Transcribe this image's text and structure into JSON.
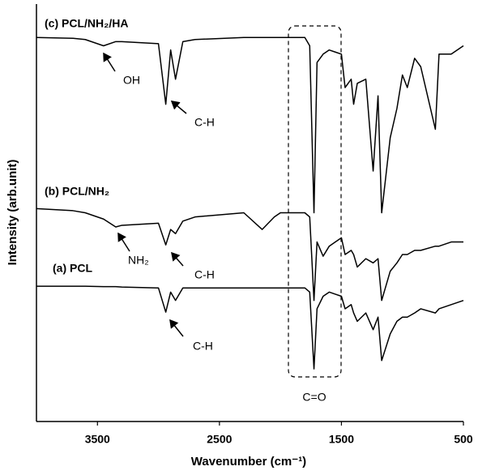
{
  "chart_data": {
    "type": "line",
    "x_label": "Wavenumber (cm⁻¹)",
    "y_label": "Intensity (arb.unit)",
    "x": [
      4000,
      3700,
      3600,
      3450,
      3350,
      3300,
      3000,
      2940,
      2900,
      2860,
      2800,
      2700,
      2300,
      2150,
      2050,
      2000,
      1800,
      1760,
      1725,
      1700,
      1650,
      1600,
      1550,
      1500,
      1470,
      1420,
      1400,
      1370,
      1300,
      1240,
      1200,
      1170,
      1100,
      1045,
      1000,
      960,
      900,
      850,
      730,
      700,
      600,
      500
    ],
    "series": [
      {
        "name": "(c) PCL/NH₂/HA",
        "color": "#000000",
        "values": [
          92,
          91.8,
          91.5,
          90,
          91,
          91,
          90.5,
          76,
          89,
          82,
          91,
          91.5,
          92,
          92,
          92,
          92,
          92,
          90,
          50,
          86,
          88,
          89,
          88.5,
          88,
          80,
          82,
          76,
          81,
          82,
          60,
          78,
          50,
          68,
          75,
          83,
          80,
          87,
          85,
          70,
          88,
          88,
          90
        ]
      },
      {
        "name": "(b) PCL/NH₂",
        "color": "#000000",
        "values": [
          51,
          50.5,
          50,
          48.5,
          46.6,
          47,
          47.5,
          42.3,
          46,
          45,
          48,
          49,
          50,
          46,
          49,
          50,
          50,
          49,
          29,
          43,
          39.6,
          42,
          43,
          44,
          40,
          41,
          40,
          37,
          39,
          38,
          39,
          29,
          36,
          38,
          40,
          40,
          41,
          41,
          42,
          42,
          43,
          43
        ]
      },
      {
        "name": "(a) PCL",
        "color": "#000000",
        "values": [
          32.4,
          32.4,
          32.4,
          32.3,
          32.3,
          32.2,
          32,
          26.2,
          31,
          29,
          32,
          32,
          32,
          32,
          32,
          32,
          32,
          31,
          12.6,
          27,
          30,
          31,
          30.5,
          30,
          27,
          28,
          26,
          24,
          26,
          22,
          25,
          14.6,
          21,
          24,
          25,
          25,
          26,
          27,
          26,
          27,
          28,
          29
        ]
      }
    ],
    "annotations": [
      "OH",
      "C-H",
      "NH₂",
      "C-H",
      "C-H",
      "C=O"
    ],
    "xlim": [
      4000,
      500
    ],
    "xticks": [
      3500,
      2500,
      1500,
      500
    ],
    "ylim": [
      0,
      100
    ]
  }
}
